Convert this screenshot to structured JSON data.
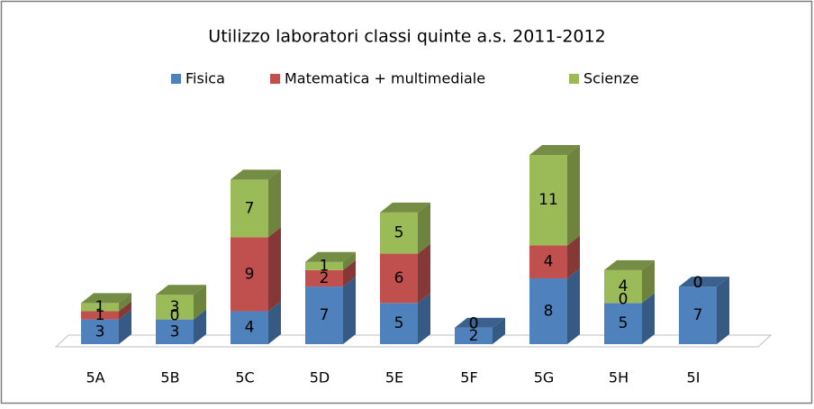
{
  "chart_data": {
    "type": "bar",
    "stacked": true,
    "three_d": true,
    "title": "Utilizzo laboratori  classi quinte a.s. 2011-2012",
    "categories": [
      "5A",
      "5B",
      "5C",
      "5D",
      "5E",
      "5F",
      "5G",
      "5H",
      "5I"
    ],
    "legend": "top",
    "series": [
      {
        "name": "Fisica",
        "color": "#4f81bd",
        "values": [
          3,
          3,
          4,
          7,
          5,
          2,
          8,
          5,
          7
        ]
      },
      {
        "name": "Matematica + multimediale",
        "color": "#c0504d",
        "values": [
          1,
          0,
          9,
          2,
          6,
          0,
          4,
          0,
          0
        ]
      },
      {
        "name": "Scienze",
        "color": "#9bbb59",
        "values": [
          1,
          3,
          7,
          1,
          5,
          0,
          11,
          4,
          0
        ]
      }
    ]
  }
}
